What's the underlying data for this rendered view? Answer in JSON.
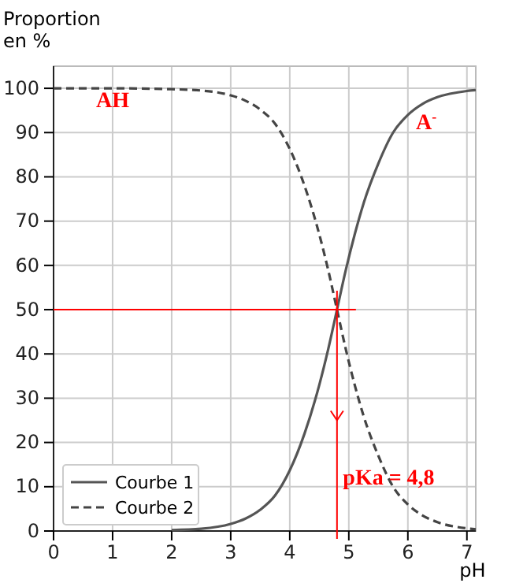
{
  "chart_data": {
    "type": "line",
    "xlabel": "pH",
    "ylabel": "Proportion en %",
    "xlim": [
      0,
      7.15
    ],
    "ylim": [
      0,
      105
    ],
    "xticks": [
      0,
      1,
      2,
      3,
      4,
      5,
      6,
      7
    ],
    "yticks": [
      0,
      10,
      20,
      30,
      40,
      50,
      60,
      70,
      80,
      90,
      100
    ],
    "grid": true,
    "legend": "bottom left",
    "marker": "none",
    "series": [
      {
        "name": "Courbe 1",
        "color": "#555555",
        "line_style": "solid",
        "x": [
          2,
          2.5,
          3,
          3.25,
          3.5,
          3.75,
          4,
          4.25,
          4.5,
          4.65,
          4.8,
          4.95,
          5.1,
          5.25,
          5.5,
          5.75,
          6,
          6.25,
          6.5,
          7,
          7.15
        ],
        "values": [
          0.2,
          0.5,
          1.6,
          2.8,
          4.8,
          8,
          13.7,
          22,
          33,
          41,
          50,
          59,
          67,
          74,
          83,
          90,
          94,
          96.5,
          98,
          99.4,
          99.6
        ]
      },
      {
        "name": "Courbe 2",
        "color": "#444444",
        "line_style": "dashed",
        "x": [
          0,
          1,
          2,
          2.5,
          3,
          3.25,
          3.5,
          3.75,
          4,
          4.25,
          4.5,
          4.65,
          4.8,
          4.95,
          5.1,
          5.25,
          5.5,
          5.75,
          6,
          6.25,
          6.5,
          7,
          7.15
        ],
        "values": [
          100,
          100,
          99.8,
          99.5,
          98.4,
          97.2,
          95.2,
          92,
          86.3,
          78,
          67,
          59,
          50,
          41,
          33,
          26,
          17,
          10,
          6,
          3.5,
          2,
          0.6,
          0.4
        ]
      }
    ],
    "ref_lines": [
      {
        "axis": "y",
        "value": 50,
        "color": "#ff0000"
      },
      {
        "axis": "x",
        "value": 4.8,
        "color": "#ff0000"
      }
    ],
    "annotations": [
      "AH",
      "A$^{-}$",
      {
        "text": "pKa = 4,8",
        "x": 4.9,
        "y": 10.5
      }
    ]
  }
}
